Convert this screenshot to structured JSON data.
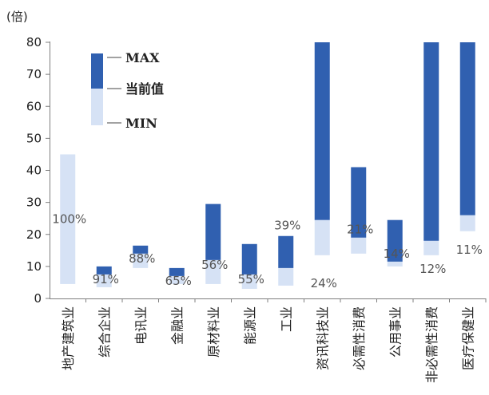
{
  "chart_data": {
    "type": "bar",
    "unit_label": "(倍)",
    "ylim": [
      0,
      80
    ],
    "yticks": [
      0,
      10,
      20,
      30,
      40,
      50,
      60,
      70,
      80
    ],
    "categories": [
      "地产建筑业",
      "综合企业",
      "电讯业",
      "金融业",
      "原材料业",
      "能源业",
      "工业",
      "资讯科技业",
      "必需性消费",
      "公用事业",
      "非必需性消费",
      "医疗保健业"
    ],
    "series": [
      {
        "name": "MIN",
        "values": [
          4.5,
          3.5,
          9.5,
          4.5,
          4.5,
          3,
          4,
          13.5,
          14,
          10,
          13.5,
          21
        ]
      },
      {
        "name": "当前值",
        "values": [
          45,
          7.5,
          14,
          7,
          12,
          7.5,
          9.5,
          24.5,
          19,
          11.5,
          18,
          26
        ]
      },
      {
        "name": "MAX",
        "values": [
          45,
          10,
          16.5,
          9.5,
          29.5,
          17,
          19.5,
          80,
          41,
          24.5,
          80,
          80
        ]
      }
    ],
    "percent_labels": [
      "100%",
      "91%",
      "88%",
      "65%",
      "56%",
      "55%",
      "39%",
      "24%",
      "21%",
      "14%",
      "12%",
      "11%"
    ],
    "legend": [
      "MAX",
      "当前值",
      "MIN"
    ],
    "colors": {
      "max": "#3060B0",
      "current": "#D6E2F5",
      "min": "#FFFFFF",
      "axis": "#7F7F7F"
    }
  }
}
